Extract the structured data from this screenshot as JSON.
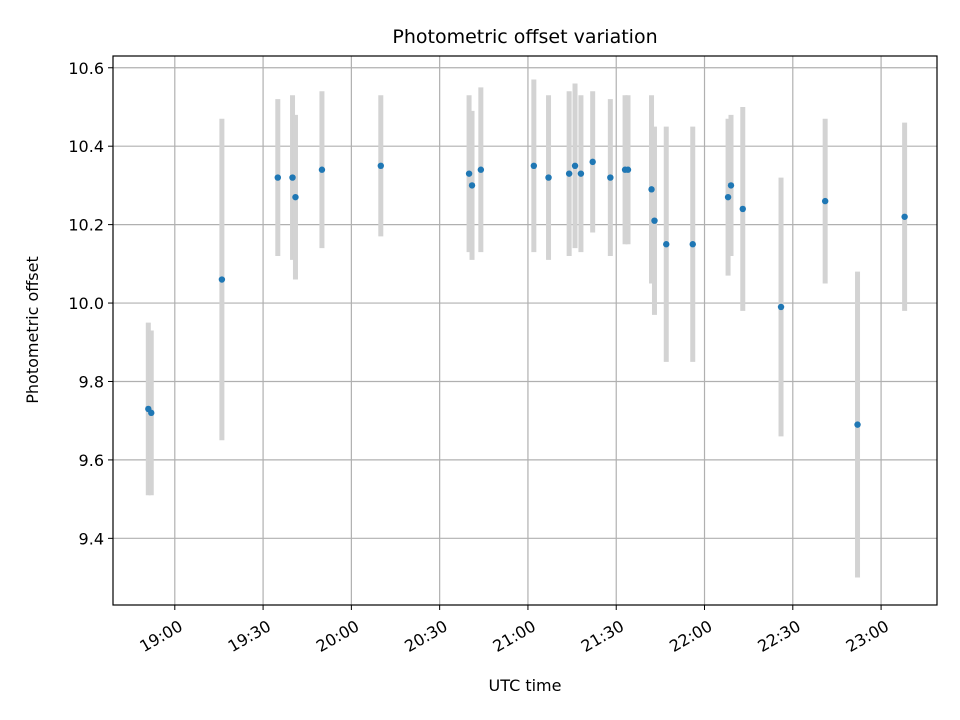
{
  "chart_data": {
    "type": "scatter",
    "title": "Photometric offset variation",
    "xlabel": "UTC time",
    "ylabel": "Photometric offset",
    "x_unit": "time of day (UTC, HH:MM)",
    "xlim": [
      "18:39",
      "23:19"
    ],
    "ylim": [
      9.23,
      10.63
    ],
    "x_ticks": [
      "19:00",
      "19:30",
      "20:00",
      "20:30",
      "21:00",
      "21:30",
      "22:00",
      "22:30",
      "23:00"
    ],
    "y_ticks": [
      "9.4",
      "9.6",
      "9.8",
      "10.0",
      "10.2",
      "10.4",
      "10.6"
    ],
    "x_tick_rotation_deg": 30,
    "grid": true,
    "legend": "none",
    "colors": {
      "point": "#1f77b4",
      "errorbar": "#d3d3d3",
      "grid": "#b0b0b0"
    },
    "series": [
      {
        "points": [
          {
            "x": "18:51",
            "y": 9.73,
            "err": 0.22
          },
          {
            "x": "18:52",
            "y": 9.72,
            "err": 0.21
          },
          {
            "x": "19:16",
            "y": 10.06,
            "err": 0.41
          },
          {
            "x": "19:35",
            "y": 10.32,
            "err": 0.2
          },
          {
            "x": "19:40",
            "y": 10.32,
            "err": 0.21
          },
          {
            "x": "19:41",
            "y": 10.27,
            "err": 0.21
          },
          {
            "x": "19:50",
            "y": 10.34,
            "err": 0.2
          },
          {
            "x": "20:10",
            "y": 10.35,
            "err": 0.18
          },
          {
            "x": "20:40",
            "y": 10.33,
            "err": 0.2
          },
          {
            "x": "20:41",
            "y": 10.3,
            "err": 0.19
          },
          {
            "x": "20:44",
            "y": 10.34,
            "err": 0.21
          },
          {
            "x": "21:02",
            "y": 10.35,
            "err": 0.22
          },
          {
            "x": "21:07",
            "y": 10.32,
            "err": 0.21
          },
          {
            "x": "21:14",
            "y": 10.33,
            "err": 0.21
          },
          {
            "x": "21:16",
            "y": 10.35,
            "err": 0.21
          },
          {
            "x": "21:18",
            "y": 10.33,
            "err": 0.2
          },
          {
            "x": "21:22",
            "y": 10.36,
            "err": 0.18
          },
          {
            "x": "21:28",
            "y": 10.32,
            "err": 0.2
          },
          {
            "x": "21:33",
            "y": 10.34,
            "err": 0.19
          },
          {
            "x": "21:34",
            "y": 10.34,
            "err": 0.19
          },
          {
            "x": "21:42",
            "y": 10.29,
            "err": 0.24
          },
          {
            "x": "21:43",
            "y": 10.21,
            "err": 0.24
          },
          {
            "x": "21:47",
            "y": 10.15,
            "err": 0.3
          },
          {
            "x": "21:56",
            "y": 10.15,
            "err": 0.3
          },
          {
            "x": "22:08",
            "y": 10.27,
            "err": 0.2
          },
          {
            "x": "22:09",
            "y": 10.3,
            "err": 0.18
          },
          {
            "x": "22:13",
            "y": 10.24,
            "err": 0.26
          },
          {
            "x": "22:26",
            "y": 9.99,
            "err": 0.33
          },
          {
            "x": "22:41",
            "y": 10.26,
            "err": 0.21
          },
          {
            "x": "22:52",
            "y": 9.69,
            "err": 0.39
          },
          {
            "x": "23:08",
            "y": 10.22,
            "err": 0.24
          }
        ]
      }
    ]
  }
}
